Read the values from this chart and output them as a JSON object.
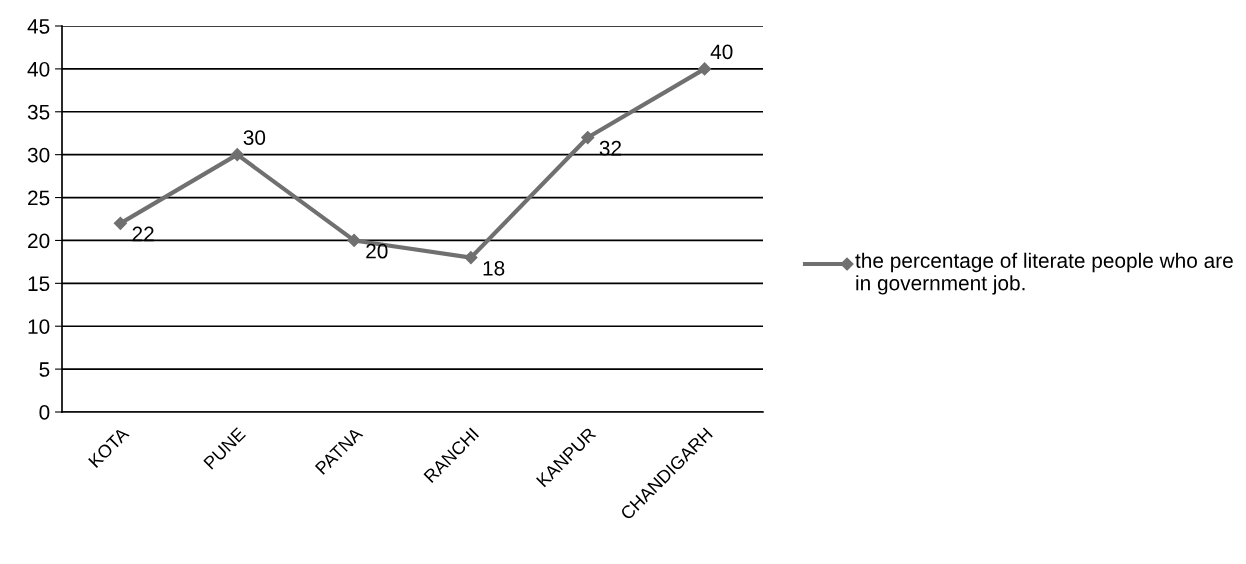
{
  "chart_data": {
    "type": "line",
    "categories": [
      "KOTA",
      "PUNE",
      "PATNA",
      "RANCHI",
      "KANPUR",
      "CHANDIGARH"
    ],
    "series": [
      {
        "name": "the percentage of literate people who are in government job.",
        "color": "#707070",
        "values": [
          22,
          30,
          20,
          18,
          32,
          40
        ]
      }
    ],
    "ylim": [
      0,
      45
    ],
    "yticks": [
      0,
      5,
      10,
      15,
      20,
      25,
      30,
      35,
      40,
      45
    ],
    "grid": "y",
    "legend": "right",
    "marker": "diamond",
    "line_style": "solid",
    "data_labels": true
  }
}
